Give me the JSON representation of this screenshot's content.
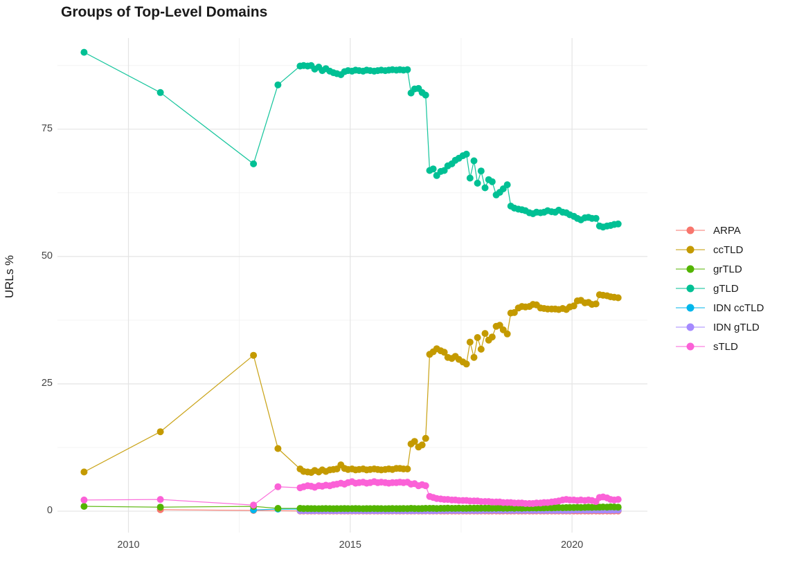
{
  "chart_data": {
    "type": "line",
    "title": "Groups of Top-Level Domains",
    "xlabel": "",
    "ylabel": "URLs %",
    "grid": true,
    "legend_position": "right",
    "xlim": [
      2008.4,
      2021.7
    ],
    "ylim": [
      -4.2,
      92.9
    ],
    "x_ticks": [
      2010,
      2015,
      2020
    ],
    "x_tick_labels": [
      "2010",
      "2015",
      "2020"
    ],
    "x_minor_ticks": [
      2012.5,
      2017.5
    ],
    "y_ticks": [
      0,
      25,
      50,
      75
    ],
    "y_tick_labels": [
      "0",
      "25",
      "50",
      "75"
    ],
    "y_minor_ticks": [
      12.5,
      37.5,
      62.5,
      87.5
    ],
    "grid_major_color": "#e4e4e4",
    "grid_minor_color": "#f1f1f1",
    "background_color": "#ffffff",
    "draw_order": [
      "ARPA",
      "IDN ccTLD",
      "IDN gTLD",
      "grTLD",
      "ccTLD",
      "gTLD",
      "sTLD"
    ],
    "x_dense": [
      2013.87,
      2013.95,
      2014.04,
      2014.12,
      2014.2,
      2014.29,
      2014.37,
      2014.45,
      2014.54,
      2014.62,
      2014.7,
      2014.79,
      2014.87,
      2014.95,
      2015.04,
      2015.12,
      2015.2,
      2015.29,
      2015.37,
      2015.45,
      2015.54,
      2015.62,
      2015.7,
      2015.79,
      2015.87,
      2015.95,
      2016.04,
      2016.12,
      2016.2,
      2016.29,
      2016.37,
      2016.45,
      2016.54,
      2016.62,
      2016.7,
      2016.79,
      2016.87,
      2016.95,
      2017.04,
      2017.12,
      2017.2,
      2017.29,
      2017.37,
      2017.45,
      2017.54,
      2017.62,
      2017.7,
      2017.79,
      2017.87,
      2017.95,
      2018.04,
      2018.12,
      2018.2,
      2018.29,
      2018.37,
      2018.45,
      2018.54,
      2018.62,
      2018.7,
      2018.79,
      2018.87,
      2018.95,
      2019.04,
      2019.12,
      2019.2,
      2019.29,
      2019.37,
      2019.45,
      2019.54,
      2019.62,
      2019.7,
      2019.79,
      2019.87,
      2019.95,
      2020.04,
      2020.12,
      2020.2,
      2020.29,
      2020.37,
      2020.45,
      2020.54,
      2020.62,
      2020.7,
      2020.79,
      2020.87,
      2020.95,
      2021.04
    ],
    "series": [
      {
        "name": "ARPA",
        "color": "#F8766D",
        "early": [
          [
            2010.72,
            0.3
          ],
          [
            2012.82,
            0.15
          ]
        ],
        "dense": [
          0.05,
          0.05,
          0.05,
          0.05,
          0.05,
          0.05,
          0.05,
          0.05,
          0.05,
          0.05,
          0.05,
          0.05,
          0.05,
          0.05,
          0.05,
          0.05,
          0.05,
          0.05,
          0.05,
          0.05,
          0.05,
          0.05,
          0.05,
          0.05,
          0.05,
          0.05,
          0.05,
          0.05,
          0.05,
          0.05,
          0.05,
          0.05,
          0.05,
          0.05,
          0.05,
          0.05,
          0.05,
          0.05,
          0.05,
          0.05,
          0.05,
          0.05,
          0.05,
          0.05,
          0.05,
          0.05,
          0.05,
          0.05,
          0.05,
          0.05,
          0.05,
          0.05,
          0.05,
          0.05,
          0.05,
          0.05,
          0.05,
          0.05,
          0.05,
          0.05,
          0.05,
          0.05,
          0.05,
          0.05,
          0.05,
          0.05,
          0.05,
          0.05,
          0.05,
          0.05,
          0.05,
          0.05,
          0.05,
          0.05,
          0.05,
          0.05,
          0.05,
          0.05,
          0.05,
          0.05,
          0.05,
          0.05,
          0.05,
          0.05,
          0.05,
          0.05,
          0.05
        ]
      },
      {
        "name": "ccTLD",
        "color": "#C49A00",
        "early": [
          [
            2009.0,
            7.7
          ],
          [
            2010.72,
            15.6
          ],
          [
            2012.82,
            30.6
          ],
          [
            2013.37,
            12.3
          ]
        ],
        "dense": [
          8.3,
          7.8,
          7.7,
          7.6,
          8.0,
          7.7,
          8.1,
          7.8,
          8.1,
          8.2,
          8.3,
          9.1,
          8.4,
          8.2,
          8.3,
          8.1,
          8.2,
          8.3,
          8.1,
          8.2,
          8.3,
          8.2,
          8.1,
          8.2,
          8.3,
          8.2,
          8.4,
          8.4,
          8.3,
          8.3,
          13.2,
          13.7,
          12.6,
          13.0,
          14.3,
          30.8,
          31.3,
          31.9,
          31.5,
          31.2,
          30.2,
          30.0,
          30.4,
          29.8,
          29.3,
          28.9,
          33.2,
          30.2,
          34.1,
          31.8,
          34.9,
          33.6,
          34.2,
          36.3,
          36.5,
          35.6,
          34.8,
          38.9,
          39.0,
          39.9,
          40.2,
          40.1,
          40.2,
          40.6,
          40.5,
          39.9,
          39.8,
          39.7,
          39.7,
          39.7,
          39.6,
          39.8,
          39.6,
          40.1,
          40.3,
          41.3,
          41.4,
          40.9,
          41.0,
          40.6,
          40.7,
          42.5,
          42.4,
          42.3,
          42.1,
          42.0,
          41.9
        ]
      },
      {
        "name": "grTLD",
        "color": "#53B400",
        "early": [
          [
            2009.0,
            0.95
          ],
          [
            2010.72,
            0.8
          ],
          [
            2012.82,
            0.95
          ],
          [
            2013.37,
            0.55
          ]
        ],
        "dense": [
          0.55,
          0.5,
          0.52,
          0.5,
          0.5,
          0.48,
          0.5,
          0.52,
          0.5,
          0.48,
          0.5,
          0.5,
          0.52,
          0.5,
          0.5,
          0.52,
          0.5,
          0.48,
          0.5,
          0.5,
          0.52,
          0.5,
          0.5,
          0.48,
          0.5,
          0.52,
          0.5,
          0.5,
          0.52,
          0.5,
          0.55,
          0.52,
          0.5,
          0.52,
          0.55,
          0.55,
          0.55,
          0.52,
          0.55,
          0.55,
          0.58,
          0.55,
          0.55,
          0.58,
          0.55,
          0.55,
          0.58,
          0.6,
          0.58,
          0.6,
          0.6,
          0.58,
          0.6,
          0.6,
          0.62,
          0.6,
          0.6,
          0.62,
          0.6,
          0.62,
          0.6,
          0.62,
          0.62,
          0.65,
          0.62,
          0.65,
          0.65,
          0.68,
          0.65,
          0.68,
          0.7,
          0.68,
          0.7,
          0.72,
          0.72,
          0.75,
          0.72,
          0.75,
          0.78,
          0.75,
          0.78,
          0.8,
          0.82,
          0.8,
          0.85,
          0.82,
          0.8
        ]
      },
      {
        "name": "gTLD",
        "color": "#00C094",
        "early": [
          [
            2009.0,
            90.1
          ],
          [
            2010.72,
            82.2
          ],
          [
            2012.82,
            68.2
          ],
          [
            2013.37,
            83.7
          ]
        ],
        "dense": [
          87.4,
          87.5,
          87.4,
          87.5,
          86.8,
          87.2,
          86.5,
          86.9,
          86.4,
          86.1,
          85.9,
          85.7,
          86.3,
          86.5,
          86.4,
          86.6,
          86.5,
          86.4,
          86.6,
          86.5,
          86.4,
          86.5,
          86.6,
          86.5,
          86.6,
          86.7,
          86.6,
          86.7,
          86.6,
          86.7,
          82.1,
          82.9,
          83.0,
          82.2,
          81.7,
          66.9,
          67.2,
          65.9,
          66.7,
          66.9,
          67.8,
          68.2,
          68.9,
          69.3,
          69.8,
          70.1,
          65.4,
          68.8,
          64.4,
          66.8,
          63.5,
          65.1,
          64.7,
          62.1,
          62.6,
          63.3,
          64.1,
          59.9,
          59.5,
          59.3,
          59.2,
          59.0,
          58.6,
          58.4,
          58.7,
          58.6,
          58.7,
          59.0,
          58.8,
          58.7,
          59.1,
          58.7,
          58.6,
          58.2,
          57.9,
          57.5,
          57.2,
          57.6,
          57.7,
          57.5,
          57.5,
          56.0,
          55.8,
          56.0,
          56.1,
          56.3,
          56.4
        ]
      },
      {
        "name": "IDN ccTLD",
        "color": "#00B6EB",
        "early": [
          [
            2012.82,
            0.25
          ],
          [
            2013.37,
            0.4
          ]
        ],
        "dense": [
          0.4,
          0.38,
          0.35,
          0.35,
          0.35,
          0.35,
          0.35,
          0.35,
          0.35,
          0.35,
          0.35,
          0.35,
          0.35,
          0.35,
          0.35,
          0.35,
          0.35,
          0.35,
          0.35,
          0.35,
          0.35,
          0.35,
          0.35,
          0.35,
          0.35,
          0.35,
          0.32,
          0.32,
          0.32,
          0.32,
          0.32,
          0.32,
          0.32,
          0.32,
          0.32,
          0.32,
          0.32,
          0.32,
          0.32,
          0.32,
          0.32,
          0.32,
          0.32,
          0.32,
          0.32,
          0.32,
          0.32,
          0.32,
          0.32,
          0.32,
          0.3,
          0.3,
          0.3,
          0.3,
          0.3,
          0.3,
          0.3,
          0.3,
          0.3,
          0.3,
          0.3,
          0.3,
          0.3,
          0.3,
          0.3,
          0.3,
          0.3,
          0.3,
          0.3,
          0.3,
          0.3,
          0.3,
          0.3,
          0.3,
          0.27,
          0.27,
          0.27,
          0.27,
          0.27,
          0.27,
          0.27,
          0.27,
          0.27,
          0.27,
          0.27,
          0.27,
          0.27
        ]
      },
      {
        "name": "IDN gTLD",
        "color": "#A58AFF",
        "early": [],
        "dense": [
          0.12,
          0.12,
          0.12,
          0.12,
          0.12,
          0.12,
          0.12,
          0.12,
          0.12,
          0.12,
          0.12,
          0.12,
          0.12,
          0.12,
          0.12,
          0.12,
          0.12,
          0.12,
          0.12,
          0.12,
          0.12,
          0.12,
          0.12,
          0.12,
          0.12,
          0.12,
          0.12,
          0.12,
          0.12,
          0.12,
          0.12,
          0.12,
          0.12,
          0.12,
          0.12,
          0.12,
          0.12,
          0.12,
          0.15,
          0.15,
          0.15,
          0.15,
          0.15,
          0.15,
          0.15,
          0.15,
          0.15,
          0.15,
          0.15,
          0.15,
          0.18,
          0.18,
          0.18,
          0.18,
          0.18,
          0.18,
          0.18,
          0.18,
          0.18,
          0.18,
          0.18,
          0.18,
          0.18,
          0.18,
          0.18,
          0.18,
          0.18,
          0.18,
          0.18,
          0.18,
          0.18,
          0.18,
          0.18,
          0.18,
          0.22,
          0.22,
          0.22,
          0.22,
          0.22,
          0.22,
          0.22,
          0.22,
          0.22,
          0.22,
          0.22,
          0.22,
          0.22
        ]
      },
      {
        "name": "sTLD",
        "color": "#FB61D7",
        "early": [
          [
            2009.0,
            2.2
          ],
          [
            2010.72,
            2.3
          ],
          [
            2012.82,
            1.2
          ],
          [
            2013.37,
            4.8
          ]
        ],
        "dense": [
          4.6,
          4.8,
          5.0,
          4.9,
          4.7,
          5.0,
          4.9,
          5.1,
          5.0,
          5.2,
          5.3,
          5.5,
          5.3,
          5.6,
          5.8,
          5.5,
          5.6,
          5.7,
          5.5,
          5.6,
          5.8,
          5.6,
          5.7,
          5.6,
          5.5,
          5.6,
          5.6,
          5.7,
          5.6,
          5.7,
          5.3,
          5.4,
          5.0,
          5.2,
          5.0,
          2.9,
          2.7,
          2.5,
          2.4,
          2.3,
          2.3,
          2.2,
          2.2,
          2.1,
          2.1,
          2.1,
          2.0,
          2.0,
          2.0,
          1.9,
          1.9,
          1.9,
          1.8,
          1.8,
          1.8,
          1.7,
          1.7,
          1.7,
          1.6,
          1.6,
          1.6,
          1.5,
          1.5,
          1.5,
          1.6,
          1.6,
          1.7,
          1.7,
          1.8,
          1.9,
          2.0,
          2.2,
          2.3,
          2.2,
          2.2,
          2.1,
          2.2,
          2.1,
          2.2,
          2.1,
          1.9,
          2.7,
          2.8,
          2.6,
          2.3,
          2.2,
          2.3
        ]
      }
    ]
  }
}
